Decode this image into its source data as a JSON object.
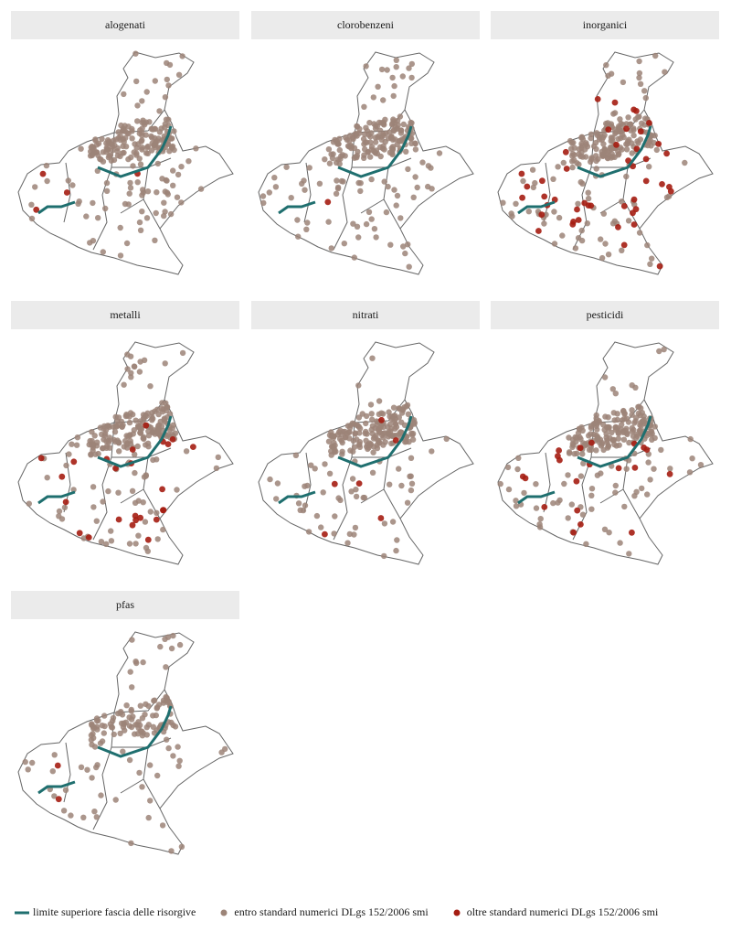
{
  "panels": [
    {
      "title": "alogenati"
    },
    {
      "title": "clorobenzeni"
    },
    {
      "title": "inorganici"
    },
    {
      "title": "metalli"
    },
    {
      "title": "nitrati"
    },
    {
      "title": "pesticidi"
    },
    {
      "title": "pfas"
    }
  ],
  "legend": [
    "limite superiore fascia delle risorgive",
    "entro standard numerici DLgs 152/2006 smi",
    "oltre standard numerici DLgs 152/2006 smi"
  ]
}
